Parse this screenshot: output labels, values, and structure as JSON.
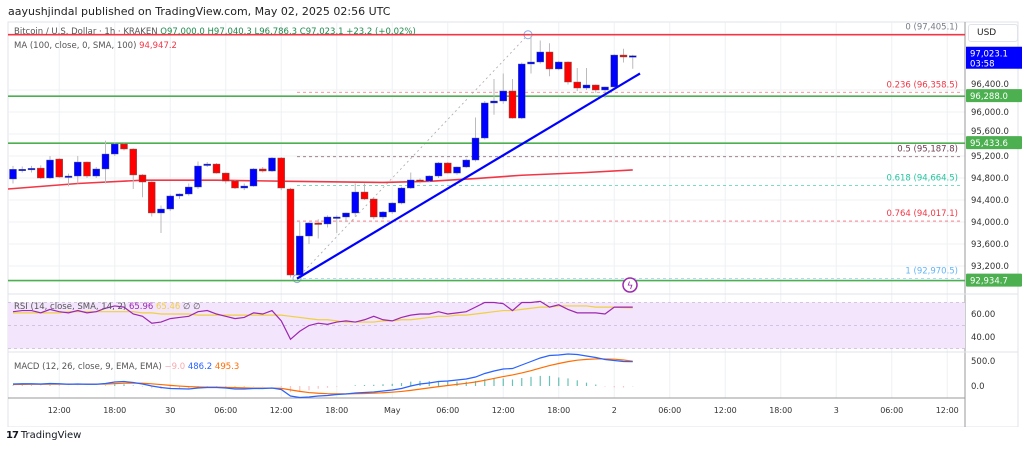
{
  "header": {
    "published": "aayushjindal published on TradingView.com, May 02, 2025 02:56 UTC"
  },
  "legend": {
    "symbol": "Bitcoin / U.S. Dollar · 1h · KRAKEN",
    "open": "O97,000.0",
    "high": "H97,040.3",
    "low": "L96,786.3",
    "close": "C97,023.1",
    "change": "+23.2 (+0.02%)",
    "ma_label": "MA (100, close, 0, SMA, 100)",
    "ma_value": "94,947.2",
    "rsi_label": "RSI (14, close, SMA, 14, 2)",
    "rsi_value": "65.96",
    "rsi_signal": "65.46",
    "rsi_extra1": "∅",
    "rsi_extra2": "∅",
    "macd_label": "MACD (12, 26, close, 9, EMA, EMA)",
    "macd_hist": "−9.0",
    "macd_value": "486.2",
    "macd_signal": "495.3"
  },
  "price_axis": {
    "currency": "USD",
    "ticks": [
      "96,400.0",
      "96,000.0",
      "95,600.0",
      "95,200.0",
      "94,800.0",
      "94,400.0",
      "94,000.0",
      "93,600.0",
      "93,200.0"
    ],
    "tick_values": [
      96400,
      96000,
      95600,
      95200,
      94800,
      94400,
      94000,
      93600,
      93200
    ],
    "range": [
      92850,
      97450
    ],
    "last_price": "97,023.1",
    "countdown": "03:58",
    "tags": [
      {
        "label": "96,288.0",
        "value": 96288.0,
        "color": "#4caf50"
      },
      {
        "label": "95,433.6",
        "value": 95433.6,
        "color": "#4caf50"
      },
      {
        "label": "92,934.7",
        "value": 92934.7,
        "color": "#4caf50"
      }
    ]
  },
  "horizontal_lines": [
    {
      "value": 97405.1,
      "color": "#f23645"
    },
    {
      "value": 96288.0,
      "color": "#4caf50"
    },
    {
      "value": 95433.6,
      "color": "#4caf50"
    },
    {
      "value": 92934.7,
      "color": "#4caf50"
    }
  ],
  "fib_levels": [
    {
      "label": "0 (97,405.1)",
      "value": 97405.1,
      "color": "#787b86"
    },
    {
      "label": "0.236 (96,358.5)",
      "value": 96358.5,
      "color": "#f23645"
    },
    {
      "label": "0.5 (95,187.8)",
      "value": 95187.8,
      "color": "#6d3b4f"
    },
    {
      "label": "0.618 (94,664.5)",
      "value": 94664.5,
      "color": "#26c6a0"
    },
    {
      "label": "0.764 (94,017.1)",
      "value": 94017.1,
      "color": "#f23645"
    },
    {
      "label": "1 (92,970.5)",
      "value": 92970.5,
      "color": "#64b5f6"
    }
  ],
  "time_axis": {
    "labels": [
      "12:00",
      "18:00",
      "30",
      "06:00",
      "12:00",
      "18:00",
      "May",
      "06:00",
      "12:00",
      "18:00",
      "2",
      "06:00",
      "12:00",
      "18:00",
      "3",
      "06:00",
      "12:00"
    ],
    "first_label_hours_after_first_candle": 5
  },
  "colors": {
    "up": "#0000ff",
    "down": "#ff0000",
    "ma": "#f23645",
    "trendline": "#0000ff",
    "rsi": "#9c27b0",
    "rsi_signal": "#f0d040",
    "macd": "#2962ff",
    "macd_signal": "#ff6d00",
    "hist_pos": "#26a69a"
  },
  "candles_ohlc": [
    [
      94782,
      95020,
      94700,
      94958
    ],
    [
      94958,
      95010,
      94900,
      94958
    ],
    [
      94960,
      95020,
      94900,
      94975
    ],
    [
      94980,
      95030,
      94780,
      94800
    ],
    [
      94800,
      95200,
      94780,
      95127
    ],
    [
      95145,
      95160,
      94800,
      94818
    ],
    [
      94820,
      94880,
      94650,
      94836
    ],
    [
      94836,
      95200,
      94700,
      95090
    ],
    [
      95090,
      95100,
      94800,
      94836
    ],
    [
      94836,
      95000,
      94800,
      94964
    ],
    [
      94964,
      95480,
      94700,
      95236
    ],
    [
      95236,
      95450,
      95200,
      95418
    ],
    [
      95418,
      95430,
      95300,
      95327
    ],
    [
      95327,
      95340,
      94600,
      94855
    ],
    [
      94855,
      94870,
      94450,
      94727
    ],
    [
      94727,
      94740,
      94100,
      94164
    ],
    [
      94164,
      94300,
      93800,
      94236
    ],
    [
      94236,
      94500,
      94200,
      94473
    ],
    [
      94473,
      94520,
      94420,
      94509
    ],
    [
      94509,
      94700,
      94480,
      94636
    ],
    [
      94636,
      95100,
      94600,
      95018
    ],
    [
      95036,
      95090,
      95000,
      95054
    ],
    [
      95054,
      95070,
      94880,
      94890
    ],
    [
      94890,
      94900,
      94700,
      94745
    ],
    [
      94745,
      94760,
      94600,
      94618
    ],
    [
      94618,
      94700,
      94580,
      94654
    ],
    [
      94654,
      94980,
      94640,
      94964
    ],
    [
      94964,
      95000,
      94900,
      94927
    ],
    [
      94927,
      95180,
      94910,
      95164
    ],
    [
      95164,
      95180,
      94580,
      94618
    ],
    [
      94600,
      94620,
      92990,
      93036
    ],
    [
      93036,
      94000,
      92970,
      93745
    ],
    [
      93745,
      94000,
      93600,
      93982
    ],
    [
      93982,
      94050,
      93700,
      93964
    ],
    [
      93964,
      94120,
      93900,
      94091
    ],
    [
      94091,
      94120,
      93800,
      94091
    ],
    [
      94091,
      94170,
      94000,
      94164
    ],
    [
      94164,
      94700,
      94100,
      94545
    ],
    [
      94545,
      94700,
      94400,
      94418
    ],
    [
      94418,
      94450,
      94050,
      94091
    ],
    [
      94091,
      94200,
      94050,
      94182
    ],
    [
      94182,
      94360,
      94150,
      94345
    ],
    [
      94345,
      94640,
      94320,
      94618
    ],
    [
      94618,
      94900,
      94600,
      94764
    ],
    [
      94764,
      94790,
      94700,
      94745
    ],
    [
      94745,
      94850,
      94720,
      94836
    ],
    [
      94836,
      95090,
      94800,
      95073
    ],
    [
      95073,
      95090,
      94880,
      94890
    ],
    [
      94890,
      95010,
      94860,
      95000
    ],
    [
      95000,
      95150,
      94980,
      95127
    ],
    [
      95127,
      95900,
      95100,
      95527
    ],
    [
      95527,
      96200,
      95500,
      96164
    ],
    [
      96164,
      96600,
      95950,
      96200
    ],
    [
      96200,
      96700,
      96150,
      96382
    ],
    [
      96382,
      96600,
      95880,
      95890
    ],
    [
      95890,
      96900,
      95870,
      96873
    ],
    [
      96873,
      97405,
      96700,
      96909
    ],
    [
      96909,
      97300,
      96880,
      97091
    ],
    [
      97091,
      97250,
      96650,
      96782
    ],
    [
      96782,
      96930,
      96760,
      96909
    ],
    [
      96909,
      96920,
      96500,
      96545
    ],
    [
      96545,
      96800,
      96380,
      96436
    ],
    [
      96436,
      96800,
      96400,
      96491
    ],
    [
      96491,
      96500,
      96350,
      96400
    ],
    [
      96400,
      96460,
      96250,
      96455
    ],
    [
      96455,
      97050,
      96430,
      97036
    ],
    [
      97036,
      97150,
      96900,
      97000
    ],
    [
      97000,
      97040,
      96786,
      97023
    ]
  ],
  "ma_points": [
    [
      0,
      94600
    ],
    [
      7,
      94700
    ],
    [
      14,
      94760
    ],
    [
      22,
      94760
    ],
    [
      30,
      94740
    ],
    [
      40,
      94720
    ],
    [
      45,
      94740
    ],
    [
      50,
      94790
    ],
    [
      55,
      94850
    ],
    [
      62,
      94900
    ],
    [
      67,
      94947
    ]
  ],
  "rsi": {
    "axis_ticks": [
      "60.00",
      "40.00"
    ],
    "tick_values": [
      60,
      40
    ],
    "bands": [
      70,
      50,
      30
    ],
    "values": [
      62,
      63,
      63,
      61,
      64,
      62,
      61,
      63,
      61,
      62,
      65,
      67,
      66,
      60,
      58,
      52,
      53,
      56,
      57,
      58,
      62,
      63,
      60,
      58,
      56,
      57,
      61,
      60,
      63,
      54,
      38,
      45,
      50,
      52,
      51,
      53,
      54,
      53,
      55,
      58,
      55,
      54,
      57,
      59,
      60,
      60,
      62,
      60,
      61,
      62,
      66,
      70,
      70,
      69,
      63,
      70,
      70,
      71,
      66,
      68,
      64,
      61,
      61,
      61,
      60,
      66,
      66,
      66
    ],
    "signal": [
      61,
      61,
      61,
      61,
      61,
      61,
      62,
      62,
      62,
      62,
      62,
      62,
      62,
      62,
      61,
      61,
      60,
      60,
      60,
      60,
      59,
      59,
      59,
      59,
      59,
      59,
      59,
      59,
      59,
      59,
      58,
      57,
      56,
      55,
      55,
      54,
      53,
      53,
      53,
      53,
      54,
      54,
      55,
      55,
      56,
      57,
      58,
      58,
      59,
      59,
      60,
      61,
      62,
      63,
      63,
      64,
      65,
      66,
      66,
      67,
      67,
      67,
      67,
      66,
      66,
      66,
      65.5,
      65.46
    ]
  },
  "macd": {
    "axis_ticks": [
      "500.0",
      "0.0"
    ],
    "tick_values": [
      500,
      0
    ],
    "values": [
      40,
      45,
      45,
      40,
      50,
      45,
      35,
      40,
      35,
      35,
      50,
      80,
      90,
      70,
      40,
      0,
      -30,
      -50,
      -55,
      -60,
      -40,
      -30,
      -30,
      -40,
      -60,
      -60,
      -50,
      -50,
      -40,
      -70,
      -200,
      -230,
      -220,
      -200,
      -190,
      -170,
      -160,
      -140,
      -130,
      -120,
      -100,
      -80,
      -50,
      0,
      40,
      60,
      90,
      100,
      120,
      140,
      180,
      250,
      300,
      340,
      350,
      420,
      490,
      560,
      610,
      620,
      640,
      630,
      600,
      570,
      530,
      510,
      490,
      486.2
    ],
    "signal": [
      30,
      32,
      34,
      35,
      37,
      38,
      38,
      38,
      38,
      38,
      40,
      48,
      56,
      59,
      55,
      44,
      29,
      13,
      -1,
      -13,
      -19,
      -21,
      -23,
      -26,
      -33,
      -38,
      -41,
      -43,
      -42,
      -48,
      -78,
      -108,
      -131,
      -145,
      -154,
      -158,
      -158,
      -154,
      -150,
      -144,
      -135,
      -124,
      -109,
      -87,
      -62,
      -38,
      -12,
      10,
      32,
      54,
      80,
      114,
      151,
      189,
      221,
      261,
      307,
      358,
      408,
      450,
      488,
      516,
      533,
      541,
      541,
      536,
      520,
      495.3
    ]
  }
}
